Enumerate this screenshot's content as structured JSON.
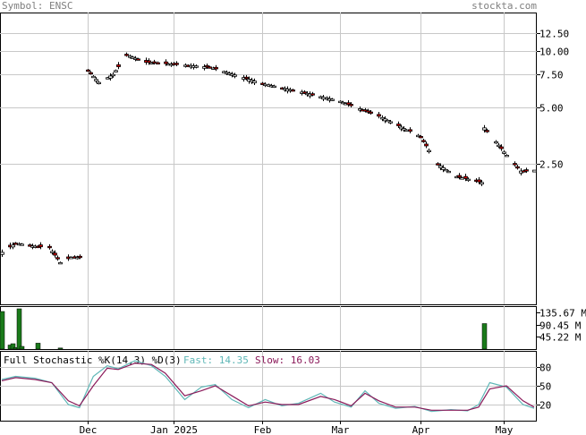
{
  "header": {
    "symbol_label": "Symbol:",
    "symbol": "ENSC",
    "site": "stockta.com"
  },
  "x_axis": {
    "months": [
      {
        "label": "Dec",
        "date": "2024-12-02"
      },
      {
        "label": "Jan 2025",
        "date": "2025-01-02"
      },
      {
        "label": "Feb",
        "date": "2025-02-03"
      },
      {
        "label": "Mar",
        "date": "2025-03-03"
      },
      {
        "label": "Apr",
        "date": "2025-04-01"
      },
      {
        "label": "May",
        "date": "2025-05-01"
      }
    ]
  },
  "price_axis": {
    "scale": "log",
    "ticks": [
      "12.50",
      "10.00",
      "7.50",
      "5.00",
      "2.50"
    ]
  },
  "volume_axis": {
    "ticks": [
      "135.67 M",
      "90.45 M",
      "45.22 M"
    ]
  },
  "stochastic": {
    "title": "Full Stochastic %K(14,3) %D(3)",
    "fast_label": "Fast:",
    "fast_value": "14.35",
    "slow_label": "Slow:",
    "slow_value": "16.03",
    "ticks": [
      "80",
      "50",
      "20"
    ],
    "colors": {
      "fast": "#5fb7b7",
      "slow": "#8b1a5a"
    }
  },
  "colors": {
    "up": "#ffffff",
    "down": "#d90000",
    "volume": "#1a7a1a",
    "grid": "#c8c8c8"
  },
  "chart_data": [
    {
      "type": "candlestick",
      "title": "",
      "x_range": [
        "2024-11-01",
        "2025-05-12"
      ],
      "y_scale": "log",
      "ylim": [
        0.45,
        16.0
      ],
      "anchors": [
        {
          "date": "2024-11-01",
          "close": 0.85
        },
        {
          "date": "2024-11-06",
          "close": 0.95
        },
        {
          "date": "2024-11-12",
          "close": 0.92
        },
        {
          "date": "2024-11-18",
          "close": 0.9
        },
        {
          "date": "2024-11-22",
          "close": 0.75
        },
        {
          "date": "2024-11-26",
          "close": 0.8
        },
        {
          "date": "2024-12-02",
          "close": 7.9
        },
        {
          "date": "2024-12-06",
          "close": 6.8
        },
        {
          "date": "2024-12-11",
          "close": 7.5
        },
        {
          "date": "2024-12-16",
          "close": 9.5
        },
        {
          "date": "2024-12-23",
          "close": 8.7
        },
        {
          "date": "2025-01-02",
          "close": 8.5
        },
        {
          "date": "2025-01-15",
          "close": 8.2
        },
        {
          "date": "2025-02-03",
          "close": 6.7
        },
        {
          "date": "2025-02-18",
          "close": 6.0
        },
        {
          "date": "2025-03-03",
          "close": 5.4
        },
        {
          "date": "2025-03-17",
          "close": 4.5
        },
        {
          "date": "2025-04-01",
          "close": 3.5
        },
        {
          "date": "2025-04-07",
          "close": 2.5
        },
        {
          "date": "2025-04-14",
          "close": 2.15
        },
        {
          "date": "2025-04-23",
          "close": 2.0
        },
        {
          "date": "2025-04-24",
          "close": 3.9
        },
        {
          "date": "2025-05-01",
          "close": 2.9
        },
        {
          "date": "2025-05-07",
          "close": 2.3
        },
        {
          "date": "2025-05-12",
          "close": 2.3
        }
      ]
    },
    {
      "type": "bar",
      "title": "",
      "ylabel": "",
      "ylim": [
        0,
        160000000
      ],
      "bars": [
        {
          "date": "2024-11-01",
          "value": 140000000
        },
        {
          "date": "2024-11-04",
          "value": 15000000
        },
        {
          "date": "2024-11-05",
          "value": 20000000
        },
        {
          "date": "2024-11-06",
          "value": 6000000
        },
        {
          "date": "2024-11-07",
          "value": 150000000
        },
        {
          "date": "2024-11-08",
          "value": 10000000
        },
        {
          "date": "2024-11-14",
          "value": 22000000
        },
        {
          "date": "2024-11-22",
          "value": 4000000
        },
        {
          "date": "2025-04-24",
          "value": 95000000
        }
      ]
    },
    {
      "type": "line",
      "title": "Full Stochastic %K(14,3) %D(3)",
      "ylim": [
        0,
        100
      ],
      "series": [
        {
          "name": "Fast",
          "points": [
            {
              "date": "2024-11-01",
              "y": 60
            },
            {
              "date": "2024-11-06",
              "y": 65
            },
            {
              "date": "2024-11-13",
              "y": 62
            },
            {
              "date": "2024-11-19",
              "y": 55
            },
            {
              "date": "2024-11-25",
              "y": 20
            },
            {
              "date": "2024-11-29",
              "y": 15
            },
            {
              "date": "2024-12-04",
              "y": 65
            },
            {
              "date": "2024-12-09",
              "y": 82
            },
            {
              "date": "2024-12-13",
              "y": 77
            },
            {
              "date": "2024-12-19",
              "y": 90
            },
            {
              "date": "2024-12-25",
              "y": 82
            },
            {
              "date": "2024-12-30",
              "y": 65
            },
            {
              "date": "2025-01-06",
              "y": 28
            },
            {
              "date": "2025-01-12",
              "y": 48
            },
            {
              "date": "2025-01-17",
              "y": 52
            },
            {
              "date": "2025-01-23",
              "y": 28
            },
            {
              "date": "2025-01-29",
              "y": 15
            },
            {
              "date": "2025-02-04",
              "y": 28
            },
            {
              "date": "2025-02-10",
              "y": 18
            },
            {
              "date": "2025-02-16",
              "y": 22
            },
            {
              "date": "2025-02-24",
              "y": 38
            },
            {
              "date": "2025-03-01",
              "y": 24
            },
            {
              "date": "2025-03-07",
              "y": 16
            },
            {
              "date": "2025-03-12",
              "y": 42
            },
            {
              "date": "2025-03-17",
              "y": 22
            },
            {
              "date": "2025-03-23",
              "y": 14
            },
            {
              "date": "2025-03-30",
              "y": 17
            },
            {
              "date": "2025-04-05",
              "y": 9
            },
            {
              "date": "2025-04-12",
              "y": 12
            },
            {
              "date": "2025-04-18",
              "y": 10
            },
            {
              "date": "2025-04-22",
              "y": 20
            },
            {
              "date": "2025-04-26",
              "y": 55
            },
            {
              "date": "2025-05-02",
              "y": 48
            },
            {
              "date": "2025-05-08",
              "y": 20
            },
            {
              "date": "2025-05-12",
              "y": 14
            }
          ]
        },
        {
          "name": "Slow",
          "points": [
            {
              "date": "2024-11-01",
              "y": 58
            },
            {
              "date": "2024-11-06",
              "y": 63
            },
            {
              "date": "2024-11-13",
              "y": 60
            },
            {
              "date": "2024-11-19",
              "y": 55
            },
            {
              "date": "2024-11-25",
              "y": 26
            },
            {
              "date": "2024-11-29",
              "y": 18
            },
            {
              "date": "2024-12-04",
              "y": 50
            },
            {
              "date": "2024-12-09",
              "y": 78
            },
            {
              "date": "2024-12-13",
              "y": 76
            },
            {
              "date": "2024-12-19",
              "y": 86
            },
            {
              "date": "2024-12-25",
              "y": 84
            },
            {
              "date": "2024-12-30",
              "y": 70
            },
            {
              "date": "2025-01-06",
              "y": 34
            },
            {
              "date": "2025-01-12",
              "y": 42
            },
            {
              "date": "2025-01-17",
              "y": 50
            },
            {
              "date": "2025-01-23",
              "y": 34
            },
            {
              "date": "2025-01-29",
              "y": 18
            },
            {
              "date": "2025-02-04",
              "y": 24
            },
            {
              "date": "2025-02-10",
              "y": 20
            },
            {
              "date": "2025-02-16",
              "y": 20
            },
            {
              "date": "2025-02-24",
              "y": 33
            },
            {
              "date": "2025-03-01",
              "y": 28
            },
            {
              "date": "2025-03-07",
              "y": 18
            },
            {
              "date": "2025-03-12",
              "y": 38
            },
            {
              "date": "2025-03-17",
              "y": 26
            },
            {
              "date": "2025-03-23",
              "y": 16
            },
            {
              "date": "2025-03-30",
              "y": 16
            },
            {
              "date": "2025-04-05",
              "y": 11
            },
            {
              "date": "2025-04-12",
              "y": 11
            },
            {
              "date": "2025-04-18",
              "y": 11
            },
            {
              "date": "2025-04-22",
              "y": 16
            },
            {
              "date": "2025-04-26",
              "y": 45
            },
            {
              "date": "2025-05-02",
              "y": 50
            },
            {
              "date": "2025-05-08",
              "y": 26
            },
            {
              "date": "2025-05-12",
              "y": 16
            }
          ]
        }
      ]
    }
  ]
}
